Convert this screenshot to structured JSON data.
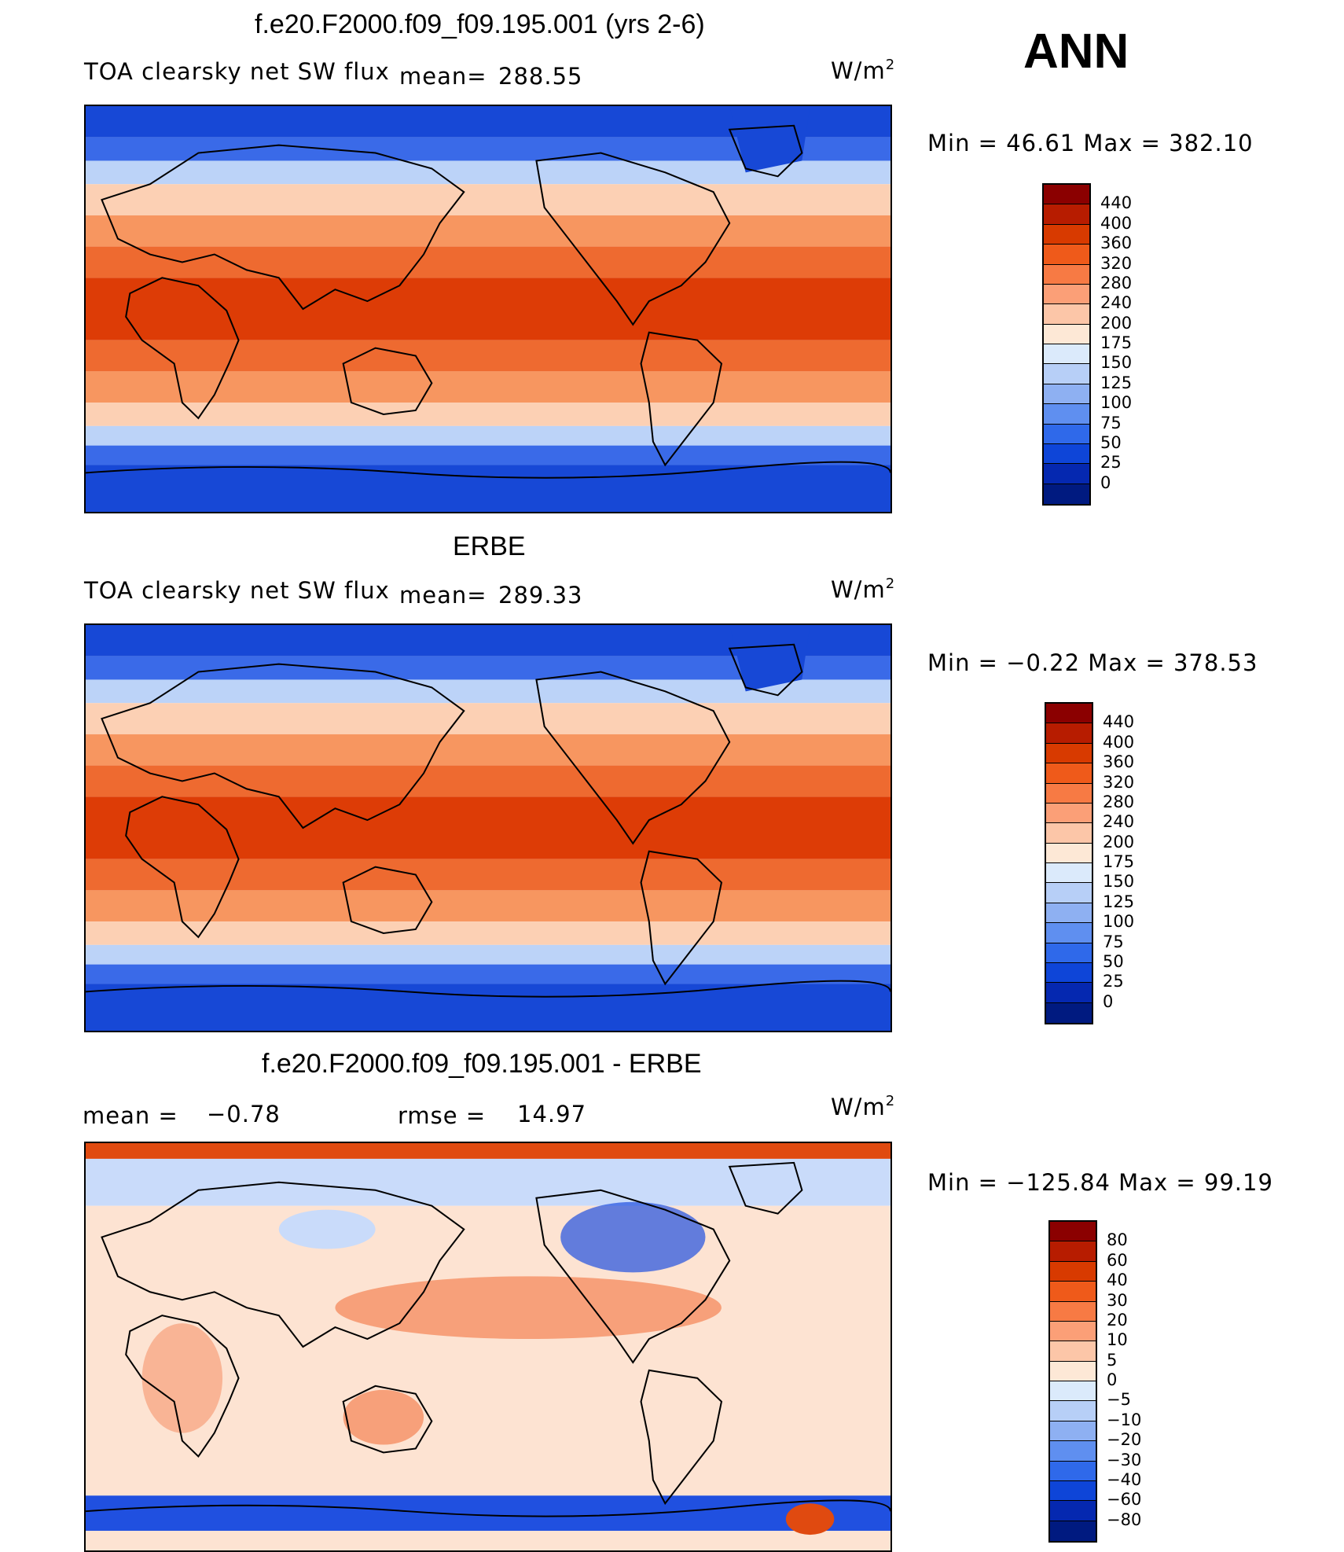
{
  "season": "ANN",
  "panels": [
    {
      "title": "f.e20.F2000.f09_f09.195.001 (yrs 2-6)",
      "variable": "TOA clearsky net SW flux",
      "mean_label": "mean=",
      "mean_value": "288.55",
      "units": "W/m",
      "units_sup": "2",
      "minmax": "Min =   46.61 Max = 382.10",
      "colorbar": {
        "ticks": [
          "440",
          "400",
          "360",
          "320",
          "280",
          "240",
          "200",
          "175",
          "150",
          "125",
          "100",
          "75",
          "50",
          "25",
          "0"
        ],
        "colors": [
          "#8b0000",
          "#b71c00",
          "#d83a00",
          "#ef5a1a",
          "#f77a44",
          "#fb9f77",
          "#fcc6a8",
          "#fde8d6",
          "#dbeafb",
          "#b7cff7",
          "#8eb0f2",
          "#5f8ff0",
          "#2f69ea",
          "#0e45d8",
          "#0528b0",
          "#001a80"
        ]
      }
    },
    {
      "title": "ERBE",
      "variable": "TOA clearsky net SW flux",
      "mean_label": "mean=",
      "mean_value": "289.33",
      "units": "W/m",
      "units_sup": "2",
      "minmax": "Min =   −0.22 Max = 378.53",
      "colorbar": {
        "ticks": [
          "440",
          "400",
          "360",
          "320",
          "280",
          "240",
          "200",
          "175",
          "150",
          "125",
          "100",
          "75",
          "50",
          "25",
          "0"
        ],
        "colors": [
          "#8b0000",
          "#b71c00",
          "#d83a00",
          "#ef5a1a",
          "#f77a44",
          "#fb9f77",
          "#fcc6a8",
          "#fde8d6",
          "#dbeafb",
          "#b7cff7",
          "#8eb0f2",
          "#5f8ff0",
          "#2f69ea",
          "#0e45d8",
          "#0528b0",
          "#001a80"
        ]
      }
    },
    {
      "title": "f.e20.F2000.f09_f09.195.001 - ERBE",
      "mean_label": "mean =",
      "mean_value": "−0.78",
      "rmse_label": "rmse =",
      "rmse_value": "14.97",
      "units": "W/m",
      "units_sup": "2",
      "minmax": "Min = −125.84 Max =   99.19",
      "colorbar": {
        "ticks": [
          "80",
          "60",
          "40",
          "30",
          "20",
          "10",
          "5",
          "0",
          "−5",
          "−10",
          "−20",
          "−30",
          "−40",
          "−60",
          "−80"
        ],
        "colors": [
          "#8b0000",
          "#b71c00",
          "#d83a00",
          "#ef5a1a",
          "#f77a44",
          "#fb9f77",
          "#fcc6a8",
          "#fde8d6",
          "#dbeafb",
          "#b7cff7",
          "#8eb0f2",
          "#5f8ff0",
          "#2f69ea",
          "#0e45d8",
          "#0528b0",
          "#001a80"
        ]
      }
    }
  ],
  "map_palette": {
    "polar": "#1748d6",
    "polar_edge": "#3a6ae8",
    "sub_polar": "#bcd3f8",
    "mid_lat": "#fcd0b4",
    "sub_trop": "#f79660",
    "trop": "#ee6a30",
    "equator": "#dd3c06",
    "diff_bg": "#fde3d2",
    "diff_pos": "#f7a07a",
    "diff_neg": "#c9dbfa",
    "diff_strong_neg": "#2050e0",
    "diff_strong_pos": "#e04a10"
  }
}
